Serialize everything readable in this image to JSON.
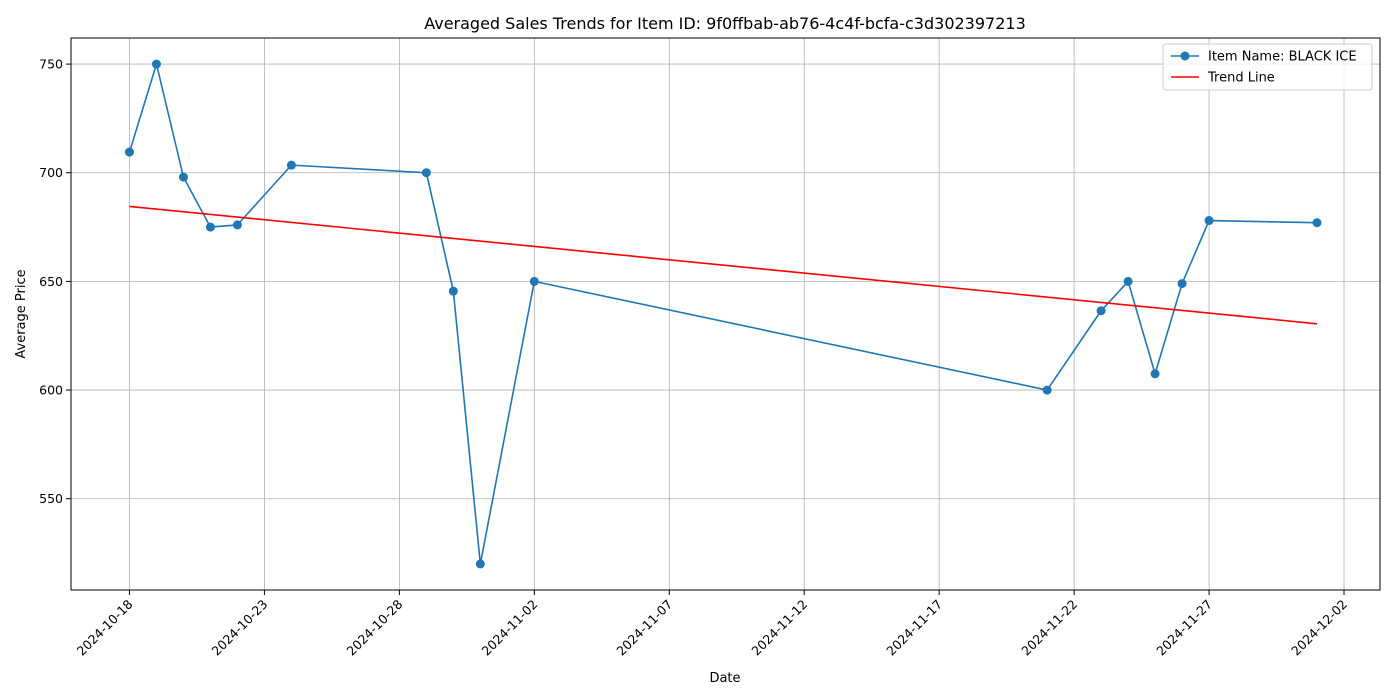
{
  "chart_data": {
    "type": "line",
    "title": "Averaged Sales Trends for Item ID: 9f0ffbab-ab76-4c4f-bcfa-c3d302397213",
    "xlabel": "Date",
    "ylabel": "Average Price",
    "x_scale": "date",
    "xlim": [
      "2024-10-15 20:00",
      "2024-12-03 08:00"
    ],
    "ylim": [
      508,
      762
    ],
    "x_ticks": [
      "2024-10-18",
      "2024-10-23",
      "2024-10-28",
      "2024-11-02",
      "2024-11-07",
      "2024-11-12",
      "2024-11-17",
      "2024-11-22",
      "2024-11-27",
      "2024-12-02"
    ],
    "y_ticks": [
      550,
      600,
      650,
      700,
      750
    ],
    "grid": true,
    "legend_position": "top-right",
    "series": [
      {
        "name": "Item Name: BLACK ICE",
        "color": "#1f77b4",
        "marker": "circle",
        "x": [
          "2024-10-18",
          "2024-10-19",
          "2024-10-20",
          "2024-10-21",
          "2024-10-22",
          "2024-10-24",
          "2024-10-29",
          "2024-10-30",
          "2024-10-31",
          "2024-11-02",
          "2024-11-21",
          "2024-11-23",
          "2024-11-24",
          "2024-11-25",
          "2024-11-26",
          "2024-11-27",
          "2024-12-01"
        ],
        "y": [
          709.5,
          750,
          698,
          675,
          676,
          703.5,
          700,
          645.5,
          520,
          650,
          600,
          636.5,
          650,
          607.5,
          649,
          678,
          677
        ]
      },
      {
        "name": "Trend Line",
        "color": "#ff0000",
        "marker": "none",
        "x": [
          "2024-10-18",
          "2024-12-01"
        ],
        "y": [
          684.5,
          630.5
        ]
      }
    ]
  }
}
